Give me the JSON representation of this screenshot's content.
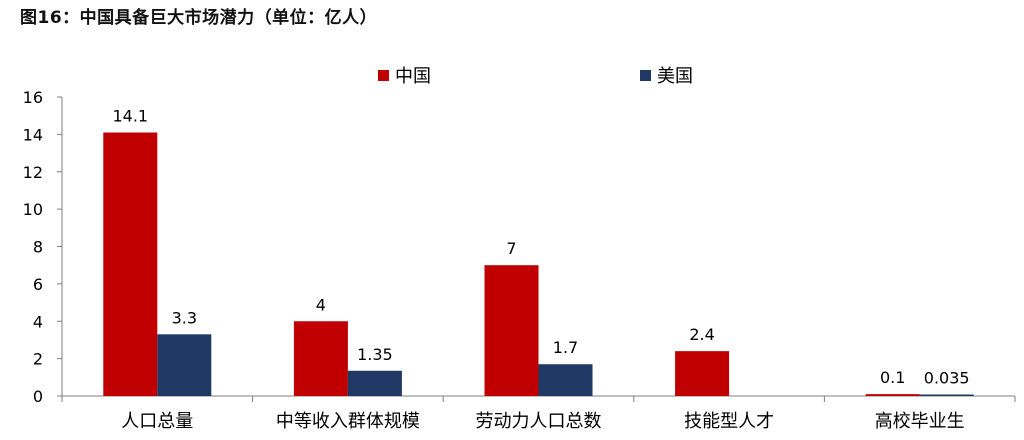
{
  "figure": {
    "title": "图16：中国具备巨大市场潜力（单位：亿人）"
  },
  "chart_data": {
    "type": "bar",
    "title": "图16：中国具备巨大市场潜力（单位：亿人）",
    "categories": [
      "人口总量",
      "中等收入群体规模",
      "劳动力人口总数",
      "技能型人才",
      "高校毕业生"
    ],
    "series": [
      {
        "name": "中国",
        "values": [
          14.1,
          4,
          7,
          2.4,
          0.1
        ],
        "labels": [
          "14.1",
          "4",
          "7",
          "2.4",
          "0.1"
        ],
        "color": "#c00000"
      },
      {
        "name": "美国",
        "values": [
          3.3,
          1.35,
          1.7,
          null,
          0.035
        ],
        "labels": [
          "3.3",
          "1.35",
          "1.7",
          "",
          "0.035"
        ],
        "color": "#1f3864"
      }
    ],
    "ylim": [
      0,
      16
    ],
    "yticks": [
      "0",
      "2",
      "4",
      "6",
      "8",
      "10",
      "12",
      "14",
      "16"
    ],
    "xlabel": "",
    "ylabel": "",
    "grid": false,
    "legend_position": "top-center"
  }
}
